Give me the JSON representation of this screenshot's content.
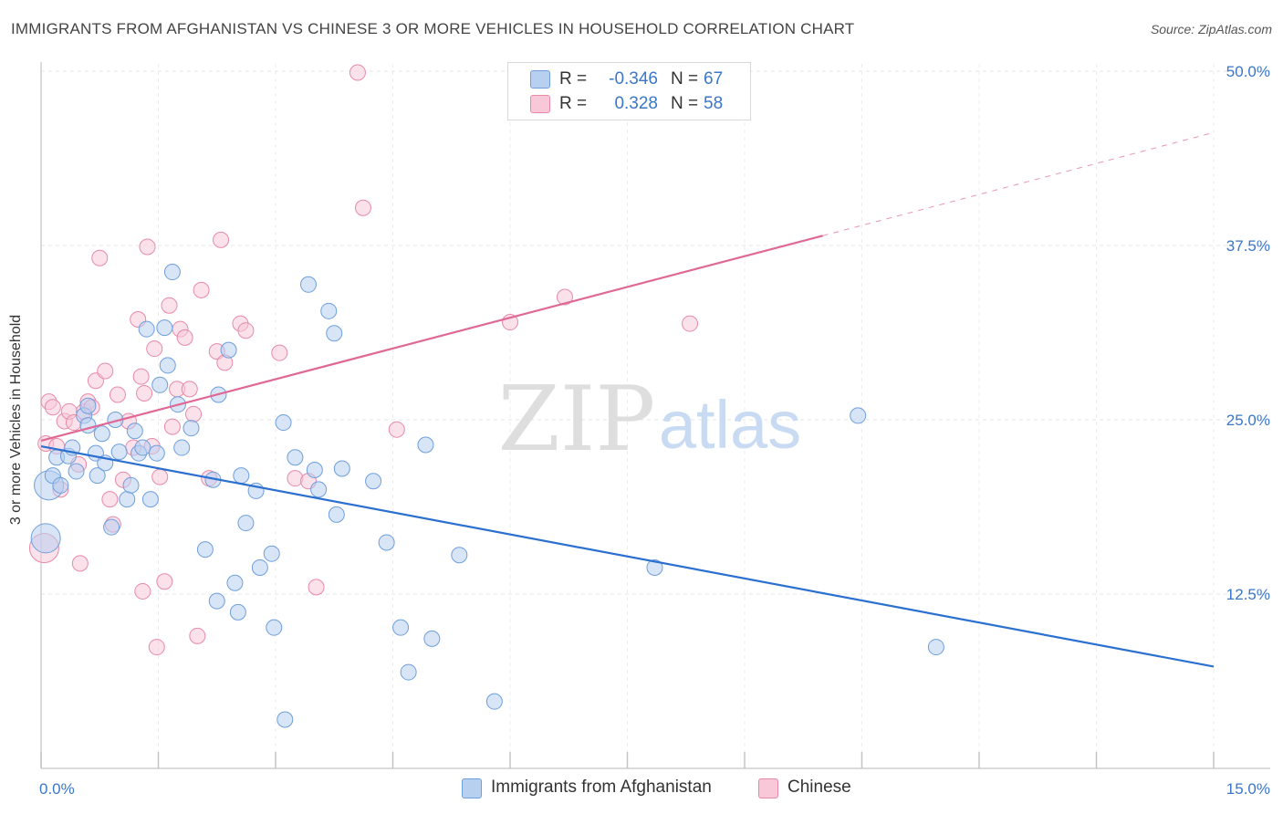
{
  "title": "IMMIGRANTS FROM AFGHANISTAN VS CHINESE 3 OR MORE VEHICLES IN HOUSEHOLD CORRELATION CHART",
  "source": "Source: ZipAtlas.com",
  "watermark": {
    "zip": "ZIP",
    "atlas": "atlas"
  },
  "colors": {
    "blue_fill": "#b8d0f0",
    "blue_stroke": "#6e9fdc",
    "blue_line": "#2b6fd0",
    "pink_fill": "#f8c8d8",
    "pink_stroke": "#e78aa8",
    "pink_line": "#e06894",
    "axis_text": "#3a77c9",
    "grid": "#e6e6e6"
  },
  "stats": [
    {
      "r_label": "R =",
      "r_value": "-0.346",
      "n_label": "N =",
      "n_value": "67"
    },
    {
      "r_label": "R =",
      "r_value": "0.328",
      "n_label": "N =",
      "n_value": "58"
    }
  ],
  "legend": [
    {
      "label": "Immigrants from Afghanistan"
    },
    {
      "label": "Chinese"
    }
  ],
  "chart_data": {
    "type": "scatter",
    "xlabel": "",
    "ylabel": "3 or more Vehicles in Household",
    "xlim": [
      0,
      15
    ],
    "ylim": [
      0,
      50
    ],
    "x_tick_labels": [
      "0.0%",
      "15.0%"
    ],
    "y_ticks": [
      12.5,
      25,
      37.5,
      50
    ],
    "y_tick_labels": [
      "12.5%",
      "25.0%",
      "37.5%",
      "50.0%"
    ],
    "grid": true,
    "legend_position": "bottom-center",
    "series": [
      {
        "name": "Immigrants from Afghanistan",
        "r": -0.346,
        "n": 67,
        "trend": {
          "x0": 0.0,
          "y0": 23.1,
          "x1": 15.0,
          "y1": 7.3
        },
        "points": [
          {
            "x": 0.06,
            "y": 16.5,
            "size": "large"
          },
          {
            "x": 0.1,
            "y": 20.3,
            "size": "large"
          },
          {
            "x": 0.15,
            "y": 21.0
          },
          {
            "x": 0.2,
            "y": 22.3
          },
          {
            "x": 0.25,
            "y": 20.3
          },
          {
            "x": 0.35,
            "y": 22.4
          },
          {
            "x": 0.4,
            "y": 23.0
          },
          {
            "x": 0.45,
            "y": 21.3
          },
          {
            "x": 0.55,
            "y": 25.3
          },
          {
            "x": 0.6,
            "y": 26.0
          },
          {
            "x": 0.6,
            "y": 24.6
          },
          {
            "x": 0.7,
            "y": 22.6
          },
          {
            "x": 0.72,
            "y": 21.0
          },
          {
            "x": 0.78,
            "y": 24.0
          },
          {
            "x": 0.82,
            "y": 21.9
          },
          {
            "x": 0.9,
            "y": 17.3
          },
          {
            "x": 0.95,
            "y": 25.0
          },
          {
            "x": 1.0,
            "y": 22.7
          },
          {
            "x": 1.1,
            "y": 19.3
          },
          {
            "x": 1.15,
            "y": 20.3
          },
          {
            "x": 1.2,
            "y": 24.2
          },
          {
            "x": 1.25,
            "y": 22.6
          },
          {
            "x": 1.3,
            "y": 23.0
          },
          {
            "x": 1.35,
            "y": 31.5
          },
          {
            "x": 1.4,
            "y": 19.3
          },
          {
            "x": 1.48,
            "y": 22.6
          },
          {
            "x": 1.52,
            "y": 27.5
          },
          {
            "x": 1.58,
            "y": 31.6
          },
          {
            "x": 1.62,
            "y": 28.9
          },
          {
            "x": 1.68,
            "y": 35.6
          },
          {
            "x": 1.75,
            "y": 26.1
          },
          {
            "x": 1.8,
            "y": 23.0
          },
          {
            "x": 1.92,
            "y": 24.4
          },
          {
            "x": 2.1,
            "y": 15.7
          },
          {
            "x": 2.2,
            "y": 20.7
          },
          {
            "x": 2.25,
            "y": 12.0
          },
          {
            "x": 2.27,
            "y": 26.8
          },
          {
            "x": 2.4,
            "y": 30.0
          },
          {
            "x": 2.48,
            "y": 13.3
          },
          {
            "x": 2.52,
            "y": 11.2
          },
          {
            "x": 2.56,
            "y": 21.0
          },
          {
            "x": 2.62,
            "y": 17.6
          },
          {
            "x": 2.75,
            "y": 19.9
          },
          {
            "x": 2.8,
            "y": 14.4
          },
          {
            "x": 2.95,
            "y": 15.4
          },
          {
            "x": 2.98,
            "y": 10.1
          },
          {
            "x": 3.1,
            "y": 24.8
          },
          {
            "x": 3.12,
            "y": 3.5
          },
          {
            "x": 3.25,
            "y": 22.3
          },
          {
            "x": 3.42,
            "y": 34.7
          },
          {
            "x": 3.5,
            "y": 21.4
          },
          {
            "x": 3.55,
            "y": 20.0
          },
          {
            "x": 3.68,
            "y": 32.8
          },
          {
            "x": 3.75,
            "y": 31.2
          },
          {
            "x": 3.78,
            "y": 18.2
          },
          {
            "x": 3.85,
            "y": 21.5
          },
          {
            "x": 4.25,
            "y": 20.6
          },
          {
            "x": 4.42,
            "y": 16.2
          },
          {
            "x": 4.6,
            "y": 10.1
          },
          {
            "x": 4.7,
            "y": 6.9
          },
          {
            "x": 4.92,
            "y": 23.2
          },
          {
            "x": 5.0,
            "y": 9.3
          },
          {
            "x": 5.35,
            "y": 15.3
          },
          {
            "x": 5.8,
            "y": 4.8
          },
          {
            "x": 7.85,
            "y": 14.4
          },
          {
            "x": 10.45,
            "y": 25.3
          },
          {
            "x": 11.45,
            "y": 8.7
          }
        ]
      },
      {
        "name": "Chinese",
        "r": 0.328,
        "n": 58,
        "trend": {
          "x0": 0.0,
          "y0": 23.5,
          "x1": 10.0,
          "y1": 38.2,
          "dash_x1": 15.0,
          "dash_y1": 45.6
        },
        "points": [
          {
            "x": 0.04,
            "y": 15.8,
            "size": "large"
          },
          {
            "x": 0.06,
            "y": 23.3
          },
          {
            "x": 0.1,
            "y": 26.3
          },
          {
            "x": 0.15,
            "y": 25.9
          },
          {
            "x": 0.2,
            "y": 23.1
          },
          {
            "x": 0.25,
            "y": 20.0
          },
          {
            "x": 0.3,
            "y": 24.9
          },
          {
            "x": 0.36,
            "y": 25.6
          },
          {
            "x": 0.42,
            "y": 24.8
          },
          {
            "x": 0.48,
            "y": 21.8
          },
          {
            "x": 0.5,
            "y": 14.7
          },
          {
            "x": 0.55,
            "y": 25.6
          },
          {
            "x": 0.6,
            "y": 26.3
          },
          {
            "x": 0.65,
            "y": 25.9
          },
          {
            "x": 0.7,
            "y": 27.8
          },
          {
            "x": 0.75,
            "y": 36.6
          },
          {
            "x": 0.82,
            "y": 28.5
          },
          {
            "x": 0.88,
            "y": 19.3
          },
          {
            "x": 0.92,
            "y": 17.5
          },
          {
            "x": 0.98,
            "y": 26.8
          },
          {
            "x": 1.05,
            "y": 20.7
          },
          {
            "x": 1.12,
            "y": 24.9
          },
          {
            "x": 1.18,
            "y": 23.0
          },
          {
            "x": 1.24,
            "y": 32.2
          },
          {
            "x": 1.28,
            "y": 28.1
          },
          {
            "x": 1.3,
            "y": 12.7
          },
          {
            "x": 1.32,
            "y": 26.9
          },
          {
            "x": 1.36,
            "y": 37.4
          },
          {
            "x": 1.42,
            "y": 23.1
          },
          {
            "x": 1.45,
            "y": 30.1
          },
          {
            "x": 1.48,
            "y": 8.7
          },
          {
            "x": 1.52,
            "y": 20.9
          },
          {
            "x": 1.58,
            "y": 13.4
          },
          {
            "x": 1.64,
            "y": 33.2
          },
          {
            "x": 1.68,
            "y": 24.5
          },
          {
            "x": 1.74,
            "y": 27.2
          },
          {
            "x": 1.78,
            "y": 31.5
          },
          {
            "x": 1.84,
            "y": 30.9
          },
          {
            "x": 1.9,
            "y": 27.2
          },
          {
            "x": 1.95,
            "y": 25.4
          },
          {
            "x": 2.0,
            "y": 9.5
          },
          {
            "x": 2.05,
            "y": 34.3
          },
          {
            "x": 2.15,
            "y": 20.8
          },
          {
            "x": 2.25,
            "y": 29.9
          },
          {
            "x": 2.3,
            "y": 37.9
          },
          {
            "x": 2.35,
            "y": 29.1
          },
          {
            "x": 2.55,
            "y": 31.9
          },
          {
            "x": 2.62,
            "y": 31.4
          },
          {
            "x": 3.05,
            "y": 29.8
          },
          {
            "x": 3.25,
            "y": 20.8
          },
          {
            "x": 3.42,
            "y": 20.6
          },
          {
            "x": 3.52,
            "y": 13.0
          },
          {
            "x": 4.05,
            "y": 49.9
          },
          {
            "x": 4.12,
            "y": 40.2
          },
          {
            "x": 4.55,
            "y": 24.3
          },
          {
            "x": 6.0,
            "y": 32.0
          },
          {
            "x": 6.7,
            "y": 33.8
          },
          {
            "x": 8.3,
            "y": 31.9
          }
        ]
      }
    ]
  }
}
